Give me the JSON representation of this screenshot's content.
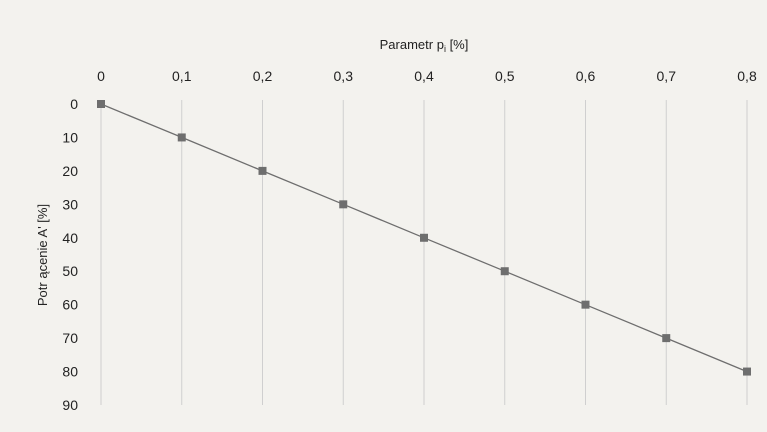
{
  "chart_data": {
    "type": "line",
    "x_axis_position": "top",
    "y_axis_inverted": true,
    "grid": "vertical",
    "xlabel": "Parametr p",
    "xlabel_sub": "i",
    "xlabel_unit": " [%]",
    "ylabel": "Potr ącenie A' [%]",
    "x_ticks": [
      "0",
      "0,1",
      "0,2",
      "0,3",
      "0,4",
      "0,5",
      "0,6",
      "0,7",
      "0,8"
    ],
    "y_ticks": [
      "0",
      "10",
      "20",
      "30",
      "40",
      "50",
      "60",
      "70",
      "80",
      "90"
    ],
    "xlim": [
      0,
      0.8
    ],
    "ylim": [
      0,
      90
    ],
    "series": [
      {
        "x": [
          0,
          0.1,
          0.2,
          0.3,
          0.4,
          0.5,
          0.6,
          0.7,
          0.8
        ],
        "y": [
          0,
          10,
          20,
          30,
          40,
          50,
          60,
          70,
          80
        ],
        "color": "#6e6e6e"
      }
    ]
  }
}
